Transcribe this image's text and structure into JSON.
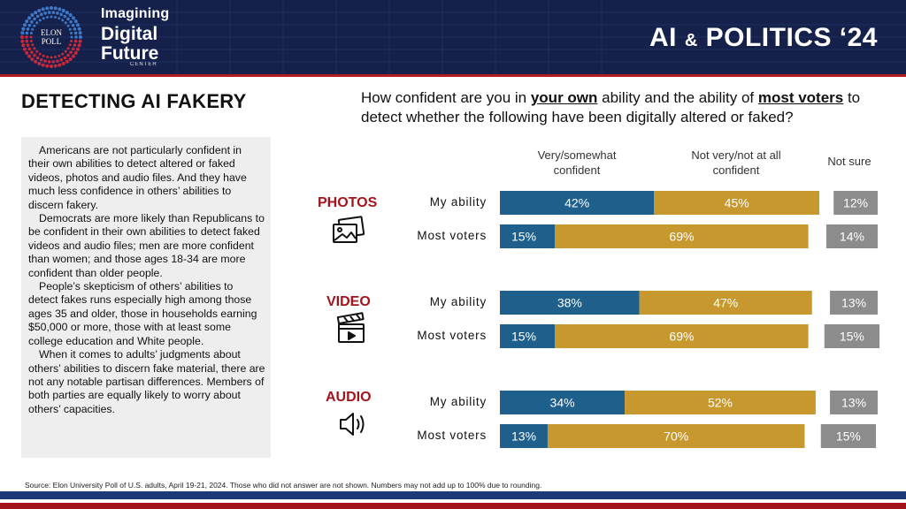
{
  "header": {
    "brand_line1": "Imagining",
    "brand_line2": "Digital",
    "brand_line3": "Future",
    "brand_line4": "CENTER",
    "logo_text1": "ELON",
    "logo_text2": "POLL",
    "title_part1": "AI",
    "title_amp": "&",
    "title_part2": "POLITICS ‘24"
  },
  "left": {
    "section_title": "DETECTING AI FAKERY",
    "paragraphs": [
      "Americans are not particularly confident in their own abilities to detect altered or faked videos, photos and audio files. And they have much less confidence in others’ abilities to discern fakery.",
      "Democrats are more likely than Republicans to be confident in their own abilities to detect faked videos and audio files; men are more confident than women; and those ages 18-34 are more confident than older people.",
      "People’s skepticism of others’ abilities to detect fakes runs especially high among those ages 35 and older, those in households earning $50,000 or more, those with at least some college education and White people.",
      "When it comes to adults’ judgments about others’ abilities to discern fake material, there are not any notable partisan differences. Members of both parties are equally likely to worry about others’ capacities."
    ]
  },
  "question": {
    "part1": "How confident are you in ",
    "em1": "your own",
    "part2": " ability and the ability of ",
    "em2": "most voters",
    "part3": " to detect whether the following have been digitally altered or faked?"
  },
  "chart_data": {
    "type": "bar",
    "orientation": "horizontal-stacked",
    "series": [
      {
        "name": "Very/somewhat confident",
        "color": "#1e5f8c"
      },
      {
        "name": "Not very/not at all confident",
        "color": "#c7982e"
      },
      {
        "name": "Not sure",
        "color": "#8c8c8c"
      }
    ],
    "column_headers": [
      "Very/somewhat confident",
      "Not very/not at all confident",
      "Not sure"
    ],
    "groups": [
      {
        "category": "PHOTOS",
        "icon": "photos-icon",
        "rows": [
          {
            "label": "My ability",
            "values": [
              42,
              45,
              12
            ]
          },
          {
            "label": "Most voters",
            "values": [
              15,
              69,
              14
            ]
          }
        ]
      },
      {
        "category": "VIDEO",
        "icon": "video-icon",
        "rows": [
          {
            "label": "My ability",
            "values": [
              38,
              47,
              13
            ]
          },
          {
            "label": "Most voters",
            "values": [
              15,
              69,
              15
            ]
          }
        ]
      },
      {
        "category": "AUDIO",
        "icon": "audio-icon",
        "rows": [
          {
            "label": "My ability",
            "values": [
              34,
              52,
              13
            ]
          },
          {
            "label": "Most voters",
            "values": [
              13,
              70,
              15
            ]
          }
        ]
      }
    ],
    "value_suffix": "%"
  },
  "footer": {
    "source": "Source: Elon University Poll of U.S. adults, April 19-21, 2024. Those who did not answer are not shown. Numbers may not add up to 100% due to rounding."
  }
}
